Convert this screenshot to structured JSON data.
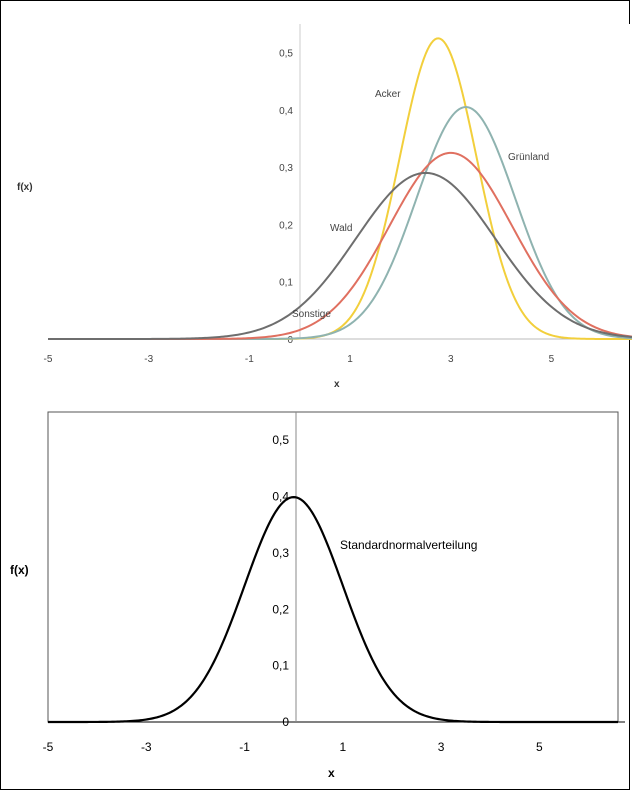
{
  "chart_data": [
    {
      "type": "line",
      "title": "",
      "xlabel": "x",
      "ylabel": "f(x)",
      "xlim": [
        -5,
        6.6
      ],
      "ylim": [
        0,
        0.55
      ],
      "x_ticks": [
        "-5",
        "-3",
        "-1",
        "1",
        "3",
        "5"
      ],
      "y_ticks": [
        "0",
        "0,1",
        "0,2",
        "0,3",
        "0,4",
        "0,5"
      ],
      "grid": false,
      "series": [
        {
          "name": "Acker",
          "color": "#f2cf3c",
          "distribution": "normal",
          "mean": 2.75,
          "sd": 0.76,
          "peak": 0.525
        },
        {
          "name": "Grünland",
          "color": "#8fb3b0",
          "distribution": "normal",
          "mean": 3.3,
          "sd": 0.98,
          "peak": 0.405
        },
        {
          "name": "Sonstige",
          "color": "#e07060",
          "distribution": "normal",
          "mean": 3.0,
          "sd": 1.22,
          "peak": 0.325
        },
        {
          "name": "Wald",
          "color": "#6e6e6e",
          "distribution": "normal",
          "mean": 2.5,
          "sd": 1.38,
          "peak": 0.29
        }
      ],
      "annotations": [
        {
          "text": "Acker",
          "series": "Acker"
        },
        {
          "text": "Grünland",
          "series": "Grünland"
        },
        {
          "text": "Wald",
          "series": "Wald"
        },
        {
          "text": "Sonstige",
          "series": "Sonstige"
        }
      ]
    },
    {
      "type": "line",
      "title": "",
      "xlabel": "x",
      "ylabel": "f(x)",
      "xlim": [
        -5,
        6.6
      ],
      "ylim": [
        0,
        0.55
      ],
      "x_ticks": [
        "-5",
        "-3",
        "-1",
        "1",
        "3",
        "5"
      ],
      "y_ticks": [
        "0",
        "0,1",
        "0,2",
        "0,3",
        "0,4",
        "0,5"
      ],
      "grid": false,
      "series": [
        {
          "name": "Standardnormalverteilung",
          "color": "#000000",
          "distribution": "normal",
          "mean": 0,
          "sd": 1,
          "peak": 0.399
        }
      ],
      "annotations": [
        {
          "text": "Standardnormalverteilung",
          "series": "Standardnormalverteilung"
        }
      ]
    }
  ]
}
